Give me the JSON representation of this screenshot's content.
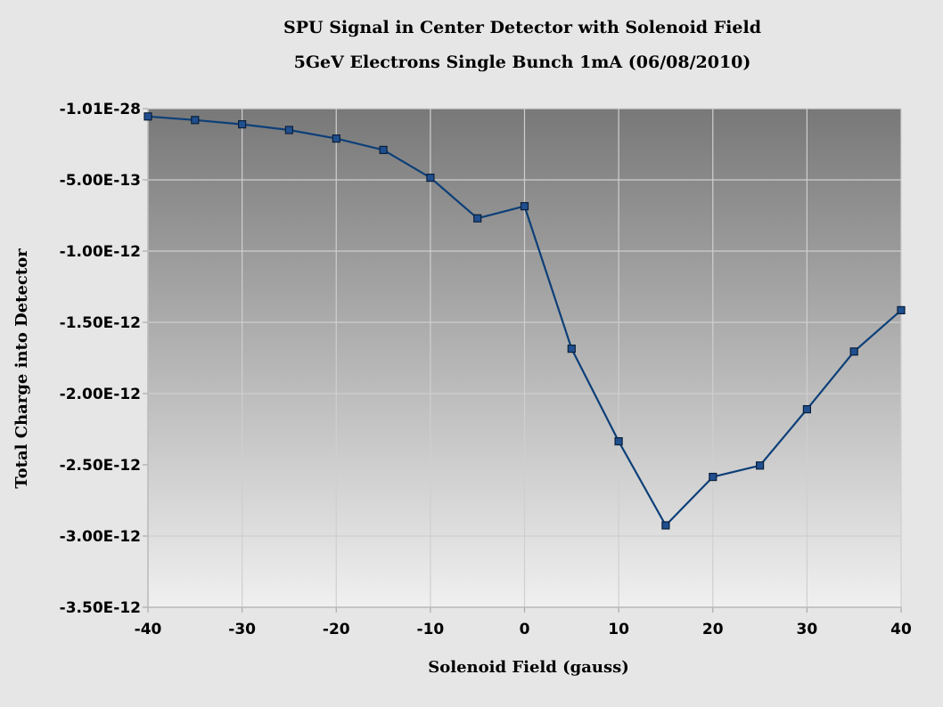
{
  "chart_data": {
    "type": "line",
    "title": "SPU Signal in Center Detector with Solenoid Field",
    "subtitle": "5GeV Electrons Single Bunch 1mA (06/08/2010)",
    "xlabel": "Solenoid Field (gauss)",
    "ylabel": "Total Charge into Detector",
    "xlim": [
      -40,
      40
    ],
    "ylim": [
      -3.5e-12,
      0
    ],
    "x_ticks": [
      -40,
      -30,
      -20,
      -10,
      0,
      10,
      20,
      30,
      40
    ],
    "x_tick_labels": [
      "-40",
      "-30",
      "-20",
      "-10",
      "0",
      "10",
      "20",
      "30",
      "40"
    ],
    "y_ticks": [
      0,
      -5e-13,
      -1e-12,
      -1.5e-12,
      -2e-12,
      -2.5e-12,
      -3e-12,
      -3.5e-12
    ],
    "y_tick_labels": [
      "-1.01E-28",
      "-5.00E-13",
      "-1.00E-12",
      "-1.50E-12",
      "-2.00E-12",
      "-2.50E-12",
      "-3.00E-12",
      "-3.50E-12"
    ],
    "grid": true,
    "legend": "none",
    "series": [
      {
        "x": [
          -40,
          -35,
          -30,
          -25,
          -20,
          -15,
          -10,
          -5,
          0,
          5,
          10,
          15,
          20,
          25,
          30,
          35,
          40
        ],
        "values": [
          -5.5e-14,
          -8e-14,
          -1.1e-13,
          -1.5e-13,
          -2.1e-13,
          -2.9e-13,
          -4.85e-13,
          -7.7e-13,
          -6.85e-13,
          -1.685e-12,
          -2.335e-12,
          -2.925e-12,
          -2.585e-12,
          -2.505e-12,
          -2.11e-12,
          -1.705e-12,
          -1.415e-12
        ]
      }
    ],
    "colors": {
      "line": "#0c3f78",
      "marker_fill": "#1f4f8f",
      "marker_stroke": "#0a1f3a",
      "plot_top": "#787878",
      "plot_bottom": "#f0f0f0",
      "grid": "#cfcfcf",
      "background": "#e6e6e6"
    }
  }
}
